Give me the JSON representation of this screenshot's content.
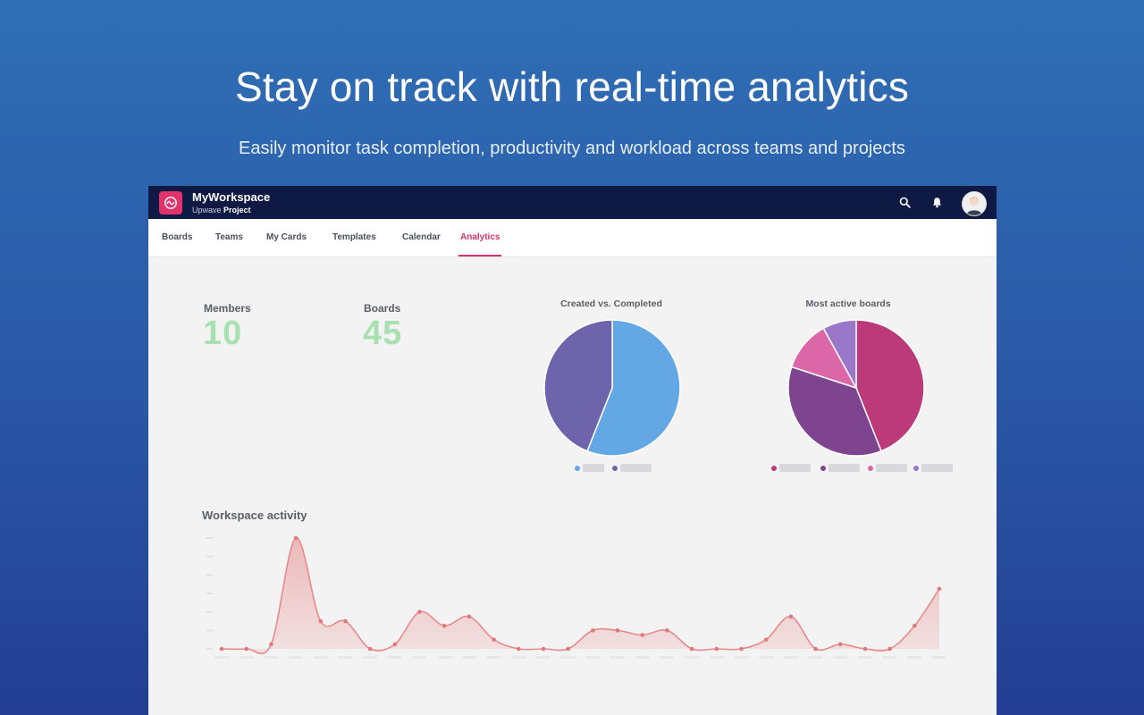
{
  "hero": {
    "title": "Stay on track with real-time analytics",
    "subtitle": "Easily monitor task completion, productivity and workload across teams and projects"
  },
  "app": {
    "workspace_name": "MyWorkspace",
    "workspace_sub_prefix": "Upwave",
    "workspace_sub_bold": "Project",
    "icons": {
      "logo": "upwave-logo-icon",
      "search": "search-icon",
      "notifications": "bell-icon",
      "avatar": "user-avatar"
    },
    "colors": {
      "topbar": "#0f1a44",
      "accent": "#d6336c",
      "stat_value": "#a8e0b0"
    }
  },
  "tabs": [
    {
      "label": "Boards",
      "active": false
    },
    {
      "label": "Teams",
      "active": false
    },
    {
      "label": "My Cards",
      "active": false
    },
    {
      "label": "Templates",
      "active": false
    },
    {
      "label": "Calendar",
      "active": false
    },
    {
      "label": "Analytics",
      "active": true
    }
  ],
  "stats": {
    "members_label": "Members",
    "members_value": "10",
    "boards_label": "Boards",
    "boards_value": "45"
  },
  "section": {
    "activity_title": "Workspace activity"
  },
  "chart_data": [
    {
      "type": "pie",
      "title": "Created vs. Completed",
      "values": [
        56,
        44
      ],
      "colors": [
        "#63a7e4",
        "#6d64ac"
      ]
    },
    {
      "type": "pie",
      "title": "Most active boards",
      "values": [
        44,
        36,
        12,
        8
      ],
      "colors": [
        "#bd3a7a",
        "#7e4490",
        "#db67a9",
        "#9b77c9"
      ]
    },
    {
      "type": "area",
      "title": "Workspace activity",
      "values": [
        0,
        0,
        1,
        24,
        6,
        6,
        0,
        1,
        8,
        5,
        7,
        2,
        0,
        0,
        0,
        4,
        4,
        3,
        4,
        0,
        0,
        0,
        2,
        7,
        0,
        1,
        0,
        0,
        5,
        13
      ],
      "ylim": [
        0,
        24
      ],
      "color": "#e98a8a",
      "grid": false
    }
  ]
}
